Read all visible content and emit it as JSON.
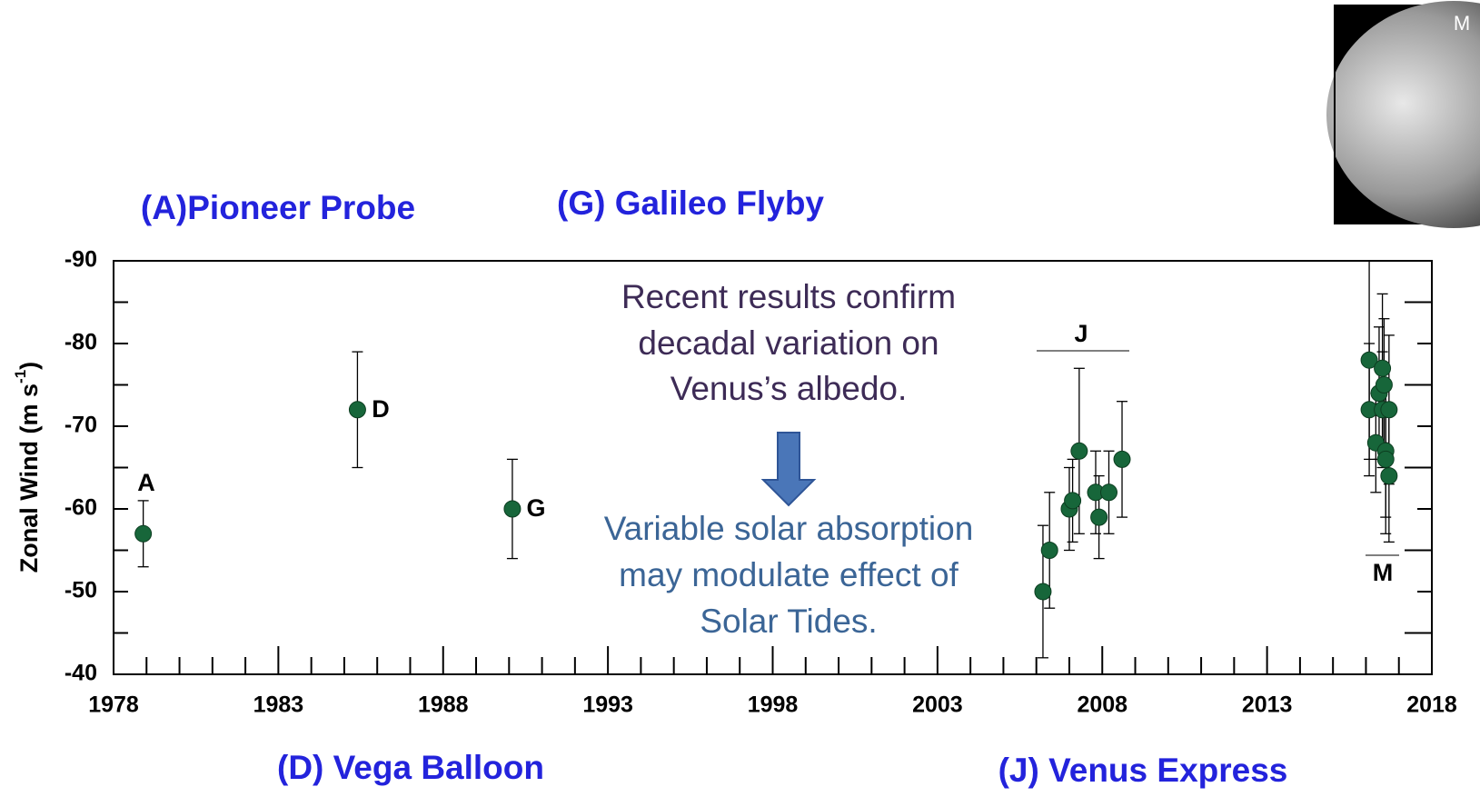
{
  "chart_data": {
    "type": "scatter",
    "headings": [
      "(A)Pioneer Probe",
      "(G) Galileo Flyby",
      "(D) Vega Balloon",
      "(J) Venus Express"
    ],
    "annotation_top": [
      "Recent results confirm",
      "decadal variation on",
      "Venus’s albedo."
    ],
    "annotation_bottom": [
      "Variable solar absorption",
      "may modulate effect of",
      "Solar Tides."
    ],
    "y_label": {
      "text": "Zonal Wind (m s",
      "superscript": "-1",
      "end": ")"
    },
    "image_label": "M",
    "point_labels": [
      "A",
      "D",
      "G",
      "J",
      "M"
    ],
    "series": [
      {
        "color": "#17663a",
        "x": [
          1978.9,
          1985.4,
          1990.1,
          2006.2,
          2006.4,
          2007.0,
          2007.1,
          2007.3,
          2007.8,
          2007.9,
          2008.2,
          2008.6,
          2016.1,
          2016.1,
          2016.3,
          2016.4,
          2016.5,
          2016.5,
          2016.55,
          2016.6,
          2016.6,
          2016.7,
          2016.7
        ],
        "values": [
          -57,
          -72,
          -60,
          -50,
          -55,
          -60,
          -61,
          -67,
          -62,
          -59,
          -62,
          -66,
          -78,
          -72,
          -68,
          -74,
          -77,
          -72,
          -75,
          -67,
          -66,
          -72,
          -64
        ],
        "errors": [
          4,
          7,
          6,
          8,
          7,
          5,
          5,
          10,
          5,
          5,
          5,
          7,
          12,
          8,
          6,
          8,
          9,
          7,
          8,
          8,
          9,
          9,
          8
        ]
      }
    ],
    "xlim": [
      1978,
      2018
    ],
    "xticks": [
      1978,
      1983,
      1988,
      1993,
      1998,
      2003,
      2008,
      2013,
      2018
    ],
    "xminorticks": [
      1979,
      1980,
      1981,
      1982,
      1984,
      1985,
      1986,
      1987,
      1989,
      1990,
      1991,
      1992,
      1994,
      1995,
      1996,
      1997,
      1999,
      2000,
      2001,
      2002,
      2004,
      2005,
      2006,
      2007,
      2009,
      2010,
      2011,
      2012,
      2014,
      2015,
      2016,
      2017
    ],
    "ylim": [
      -40,
      -90
    ],
    "yticks": [
      -90,
      -80,
      -70,
      -60,
      -50,
      -40
    ],
    "yminorticks": [
      -85,
      -75,
      -65,
      -55,
      -45
    ]
  }
}
